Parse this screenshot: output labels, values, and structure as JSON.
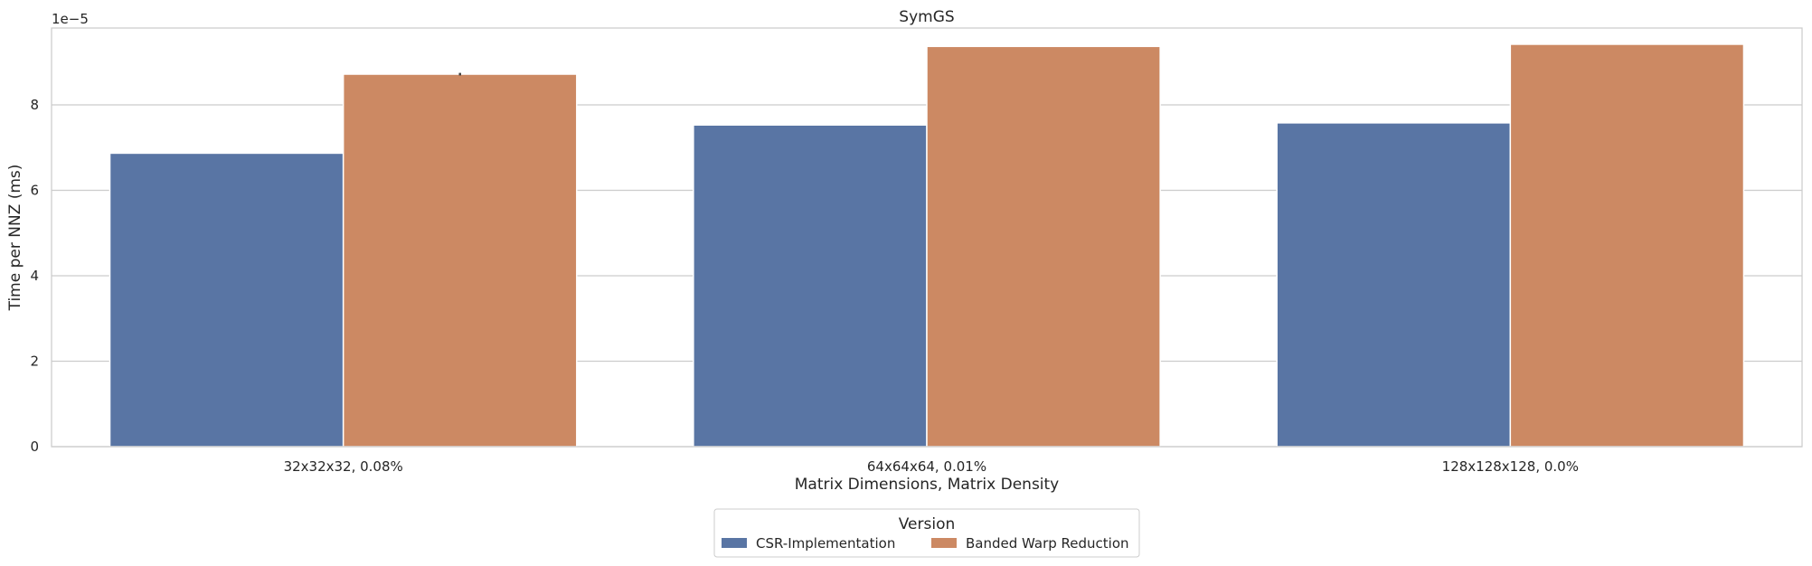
{
  "chart_data": {
    "type": "bar",
    "title": "SymGS",
    "xlabel": "Matrix Dimensions, Matrix Density",
    "ylabel": "Time per NNZ (ms)",
    "y_offset_label": "1e−5",
    "y_scale_exponent": -5,
    "ylim": [
      0,
      9.8
    ],
    "yticks": [
      0,
      2,
      4,
      6,
      8
    ],
    "categories": [
      "32x32x32, 0.08%",
      "64x64x64, 0.01%",
      "128x128x128, 0.0%"
    ],
    "series": [
      {
        "name": "CSR-Implementation",
        "color": "#5975a4",
        "values": [
          6.87,
          7.53,
          7.58
        ]
      },
      {
        "name": "Banded Warp Reduction",
        "color": "#cc8963",
        "values": [
          8.72,
          9.37,
          9.42
        ],
        "error": [
          0.03,
          0.0,
          0.0
        ]
      }
    ],
    "grid": "horizontal",
    "legend": {
      "title": "Version",
      "placement": "bottom-center",
      "ncol": 2
    }
  }
}
